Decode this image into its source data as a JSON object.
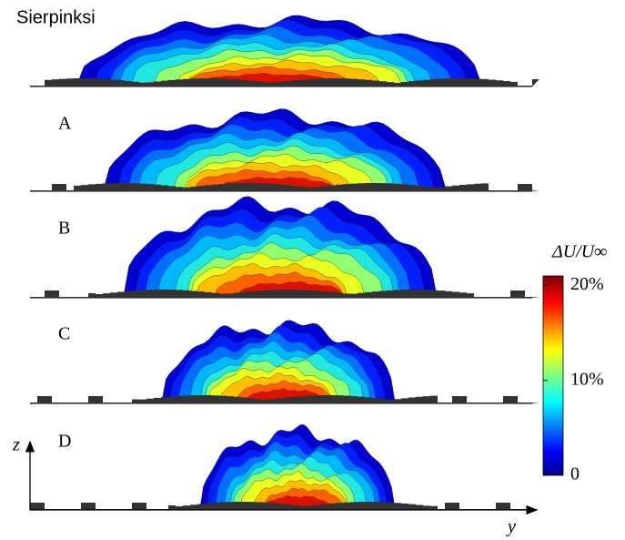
{
  "panels": [
    {
      "label": "Sierpinksi"
    },
    {
      "label": "A"
    },
    {
      "label": "B"
    },
    {
      "label": "C"
    },
    {
      "label": "D"
    }
  ],
  "colorbar": {
    "title": "ΔU/U∞",
    "lim": [
      0,
      21
    ],
    "ticks": [
      0,
      {
        "value": 10,
        "label": "10%"
      },
      {
        "value": 20,
        "label": "20%"
      }
    ]
  },
  "axes": {
    "z": "z",
    "y": "y"
  }
}
